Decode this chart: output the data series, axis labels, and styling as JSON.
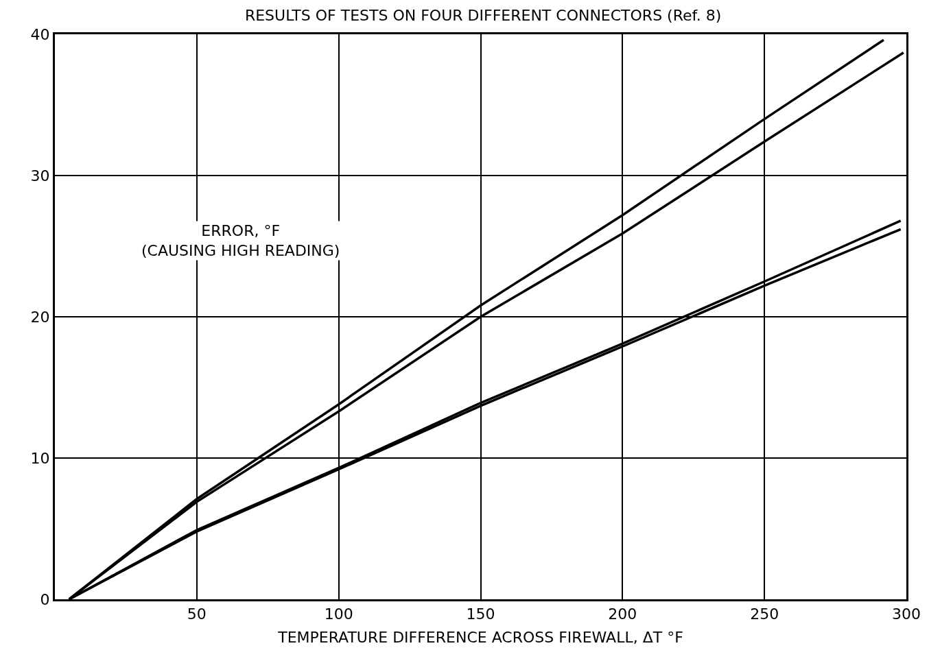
{
  "chart_data": {
    "type": "line",
    "title": "RESULTS OF TESTS ON FOUR DIFFERENT CONNECTORS (Ref. 8)",
    "xlabel": "TEMPERATURE DIFFERENCE ACROSS FIREWALL, ΔT °F",
    "ylabel": "ERROR, °F\n(CAUSING HIGH READING)",
    "xlim": [
      0,
      300
    ],
    "xticks": [
      50,
      100,
      150,
      200,
      250,
      300
    ],
    "ylim": [
      0,
      40
    ],
    "yticks": [
      0,
      10,
      20,
      30,
      40
    ],
    "grid": true,
    "marker": "none",
    "line_style": "solid",
    "series": [
      {
        "color": "#000000",
        "x": [
          5,
          50,
          100,
          150,
          200,
          250,
          292
        ],
        "values": [
          0,
          7.1,
          13.8,
          20.8,
          27.2,
          34.0,
          39.6
        ]
      },
      {
        "color": "#000000",
        "x": [
          5,
          50,
          100,
          150,
          200,
          250,
          299
        ],
        "values": [
          0,
          6.9,
          13.3,
          20.0,
          25.9,
          32.4,
          38.7
        ]
      },
      {
        "color": "#000000",
        "x": [
          5,
          50,
          100,
          150,
          200,
          250,
          298
        ],
        "values": [
          0,
          4.9,
          9.3,
          13.9,
          18.1,
          22.5,
          26.8
        ]
      },
      {
        "color": "#000000",
        "x": [
          5,
          50,
          100,
          150,
          200,
          250,
          298
        ],
        "values": [
          0,
          4.8,
          9.2,
          13.7,
          17.9,
          22.2,
          26.2
        ]
      }
    ]
  }
}
